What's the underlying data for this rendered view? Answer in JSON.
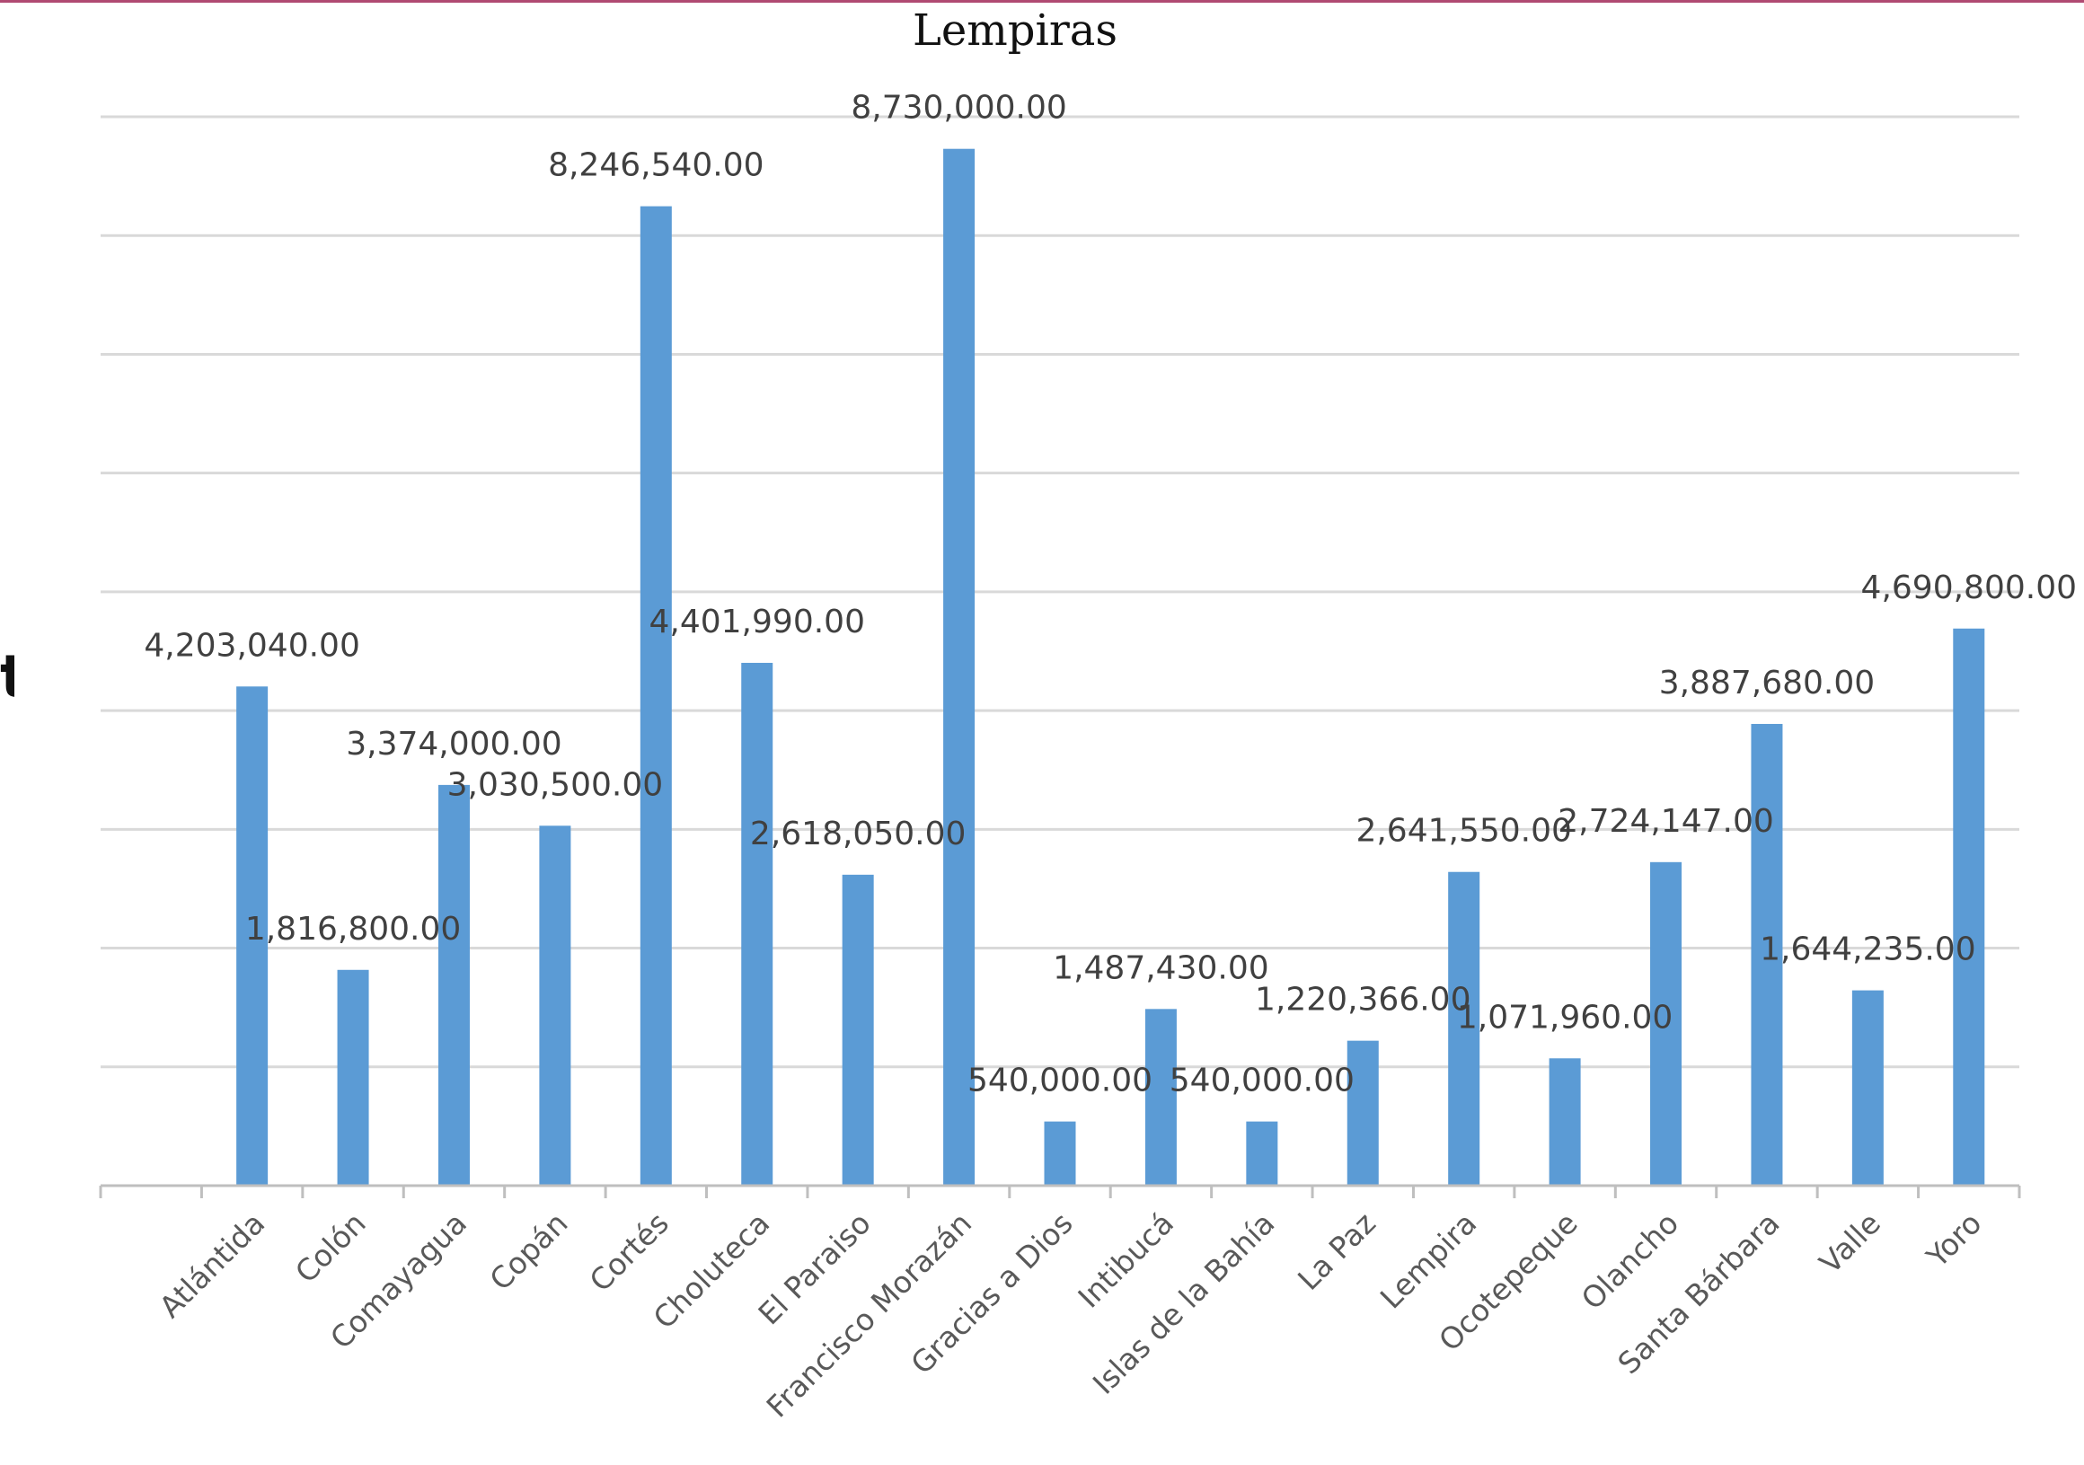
{
  "page": {
    "background_fragment_lines": [
      "tos",
      "?"
    ]
  },
  "chart_data": {
    "type": "bar",
    "title": "Lempiras",
    "xlabel": "",
    "ylabel": "",
    "categories": [
      "Atlántida",
      "Colón",
      "Comayagua",
      "Copán",
      "Cortés",
      "Choluteca",
      "El Paraiso",
      "Francisco Morazán",
      "Gracias a Dios",
      "Intibucá",
      "Islas de la Bahía",
      "La Paz",
      "Lempira",
      "Ocotepeque",
      "Olancho",
      "Santa Bárbara",
      "Valle",
      "Yoro"
    ],
    "values": [
      4203040,
      1816800,
      3374000,
      3030500,
      8246540,
      4401990,
      2618050,
      8730000,
      540000,
      1487430,
      540000,
      1220366,
      2641550,
      1071960,
      2724147,
      3887680,
      1644235,
      4690800
    ],
    "value_labels": [
      "4,203,040.00",
      "1,816,800.00",
      "3,374,000.00",
      "3,030,500.00",
      "8,246,540.00",
      "4,401,990.00",
      "2,618,050.00",
      "8,730,000.00",
      "540,000.00",
      "1,487,430.00",
      "540,000.00",
      "1,220,366.00",
      "2,641,550.00",
      "1,071,960.00",
      "2,724,147.00",
      "3,887,680.00",
      "1,644,235.00",
      "4,690,800.00"
    ],
    "ylim": [
      0,
      9000000
    ],
    "y_tick_step": 1000000,
    "y_tick_labels_visible": false,
    "grid": true,
    "legend": "none",
    "colors": {
      "bar": "#5b9bd5",
      "grid": "#d9d9d9",
      "axis": "#bfbfbf"
    }
  }
}
